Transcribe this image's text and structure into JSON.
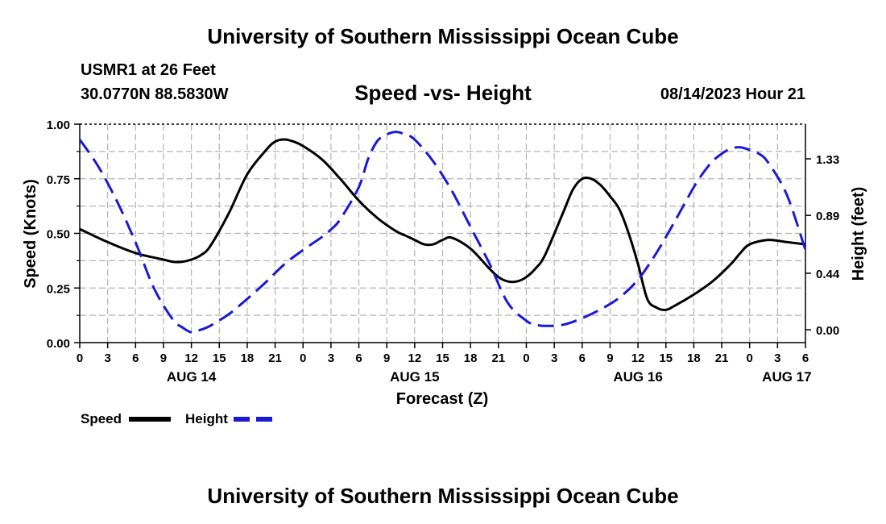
{
  "header": {
    "title": "University of Southern Mississippi Ocean Cube",
    "station": "USMR1 at 26 Feet",
    "coordinates": "30.0770N  88.5830W",
    "subtitle": "Speed -vs- Height",
    "datetime": "08/14/2023 Hour 21"
  },
  "footer": {
    "title": "University of Southern Mississippi Ocean Cube"
  },
  "legend": {
    "speed_label": "Speed",
    "height_label": "Height"
  },
  "colors": {
    "speed": "#000000",
    "height": "#1a1ad6",
    "grid": "#b4b4b4"
  },
  "chart_data": {
    "type": "line",
    "title": "Speed -vs- Height",
    "xlabel": "Forecast (Z)",
    "ylabel": "Speed (Knots)",
    "y2label": "Height (feet)",
    "x_unit": "forecast hour from 08/14/2023 00Z",
    "xlim": [
      0,
      78
    ],
    "ylim": [
      0,
      1
    ],
    "y2lim": [
      -0.1,
      1.6
    ],
    "x_ticks": [
      {
        "x": 0,
        "label": "0"
      },
      {
        "x": 3,
        "label": "3"
      },
      {
        "x": 6,
        "label": "6"
      },
      {
        "x": 9,
        "label": "9"
      },
      {
        "x": 12,
        "label": "12"
      },
      {
        "x": 15,
        "label": "15"
      },
      {
        "x": 18,
        "label": "18"
      },
      {
        "x": 21,
        "label": "21"
      },
      {
        "x": 24,
        "label": "0"
      },
      {
        "x": 27,
        "label": "3"
      },
      {
        "x": 30,
        "label": "6"
      },
      {
        "x": 33,
        "label": "9"
      },
      {
        "x": 36,
        "label": "12"
      },
      {
        "x": 39,
        "label": "15"
      },
      {
        "x": 42,
        "label": "18"
      },
      {
        "x": 45,
        "label": "21"
      },
      {
        "x": 48,
        "label": "0"
      },
      {
        "x": 51,
        "label": "3"
      },
      {
        "x": 54,
        "label": "6"
      },
      {
        "x": 57,
        "label": "9"
      },
      {
        "x": 60,
        "label": "12"
      },
      {
        "x": 63,
        "label": "15"
      },
      {
        "x": 66,
        "label": "18"
      },
      {
        "x": 69,
        "label": "21"
      },
      {
        "x": 72,
        "label": "0"
      },
      {
        "x": 75,
        "label": "3"
      },
      {
        "x": 78,
        "label": "6"
      }
    ],
    "date_labels": [
      {
        "x": 12,
        "label": "AUG 14"
      },
      {
        "x": 36,
        "label": "AUG 15"
      },
      {
        "x": 60,
        "label": "AUG 16"
      },
      {
        "x": 76,
        "label": "AUG 17"
      }
    ],
    "y_ticks": [
      {
        "v": 0.0,
        "label": "0.00"
      },
      {
        "v": 0.25,
        "label": "0.25"
      },
      {
        "v": 0.5,
        "label": "0.50"
      },
      {
        "v": 0.75,
        "label": "0.75"
      },
      {
        "v": 1.0,
        "label": "1.00"
      }
    ],
    "y2_ticks": [
      {
        "v": 0.0,
        "label": "0.00"
      },
      {
        "v": 0.44,
        "label": "0.44"
      },
      {
        "v": 0.89,
        "label": "0.89"
      },
      {
        "v": 1.33,
        "label": "1.33"
      }
    ],
    "series": [
      {
        "name": "Speed",
        "axis": "left",
        "style": "solid",
        "x": [
          0,
          3,
          6,
          9,
          10,
          11,
          12,
          13,
          14,
          16,
          18,
          20,
          21,
          22,
          23,
          24,
          26,
          28,
          30,
          32,
          34,
          35,
          36,
          37,
          38,
          39,
          40,
          42,
          44,
          45,
          46,
          47,
          48,
          49,
          50,
          52,
          53,
          54,
          55,
          56,
          57,
          58,
          59,
          60,
          61,
          62,
          63,
          64,
          66,
          68,
          70,
          71,
          72,
          74,
          76,
          78
        ],
        "values": [
          0.52,
          0.46,
          0.41,
          0.38,
          0.37,
          0.37,
          0.38,
          0.4,
          0.44,
          0.59,
          0.77,
          0.88,
          0.92,
          0.93,
          0.92,
          0.9,
          0.84,
          0.75,
          0.65,
          0.57,
          0.51,
          0.49,
          0.47,
          0.45,
          0.45,
          0.47,
          0.48,
          0.43,
          0.34,
          0.3,
          0.28,
          0.28,
          0.3,
          0.34,
          0.4,
          0.6,
          0.7,
          0.75,
          0.75,
          0.72,
          0.67,
          0.61,
          0.5,
          0.36,
          0.2,
          0.16,
          0.15,
          0.17,
          0.22,
          0.28,
          0.36,
          0.41,
          0.45,
          0.47,
          0.46,
          0.45
        ]
      },
      {
        "name": "Height",
        "axis": "right",
        "style": "dashed",
        "x": [
          0,
          2,
          4,
          6,
          8,
          10,
          11,
          12,
          13,
          14,
          16,
          18,
          20,
          22,
          24,
          26,
          27,
          28,
          30,
          31,
          32,
          33,
          34,
          35,
          36,
          38,
          40,
          42,
          44,
          46,
          48,
          49,
          50,
          52,
          54,
          56,
          58,
          60,
          62,
          64,
          66,
          67,
          68,
          69,
          70,
          71,
          72,
          73,
          74,
          76,
          78
        ],
        "values": [
          1.48,
          1.27,
          1.0,
          0.68,
          0.32,
          0.08,
          0.02,
          -0.02,
          0.0,
          0.03,
          0.12,
          0.24,
          0.37,
          0.51,
          0.62,
          0.72,
          0.78,
          0.86,
          1.11,
          1.33,
          1.47,
          1.52,
          1.54,
          1.52,
          1.48,
          1.31,
          1.08,
          0.8,
          0.52,
          0.21,
          0.07,
          0.04,
          0.03,
          0.04,
          0.09,
          0.16,
          0.25,
          0.39,
          0.6,
          0.85,
          1.11,
          1.22,
          1.31,
          1.37,
          1.41,
          1.42,
          1.4,
          1.37,
          1.3,
          1.05,
          0.62
        ]
      }
    ]
  }
}
